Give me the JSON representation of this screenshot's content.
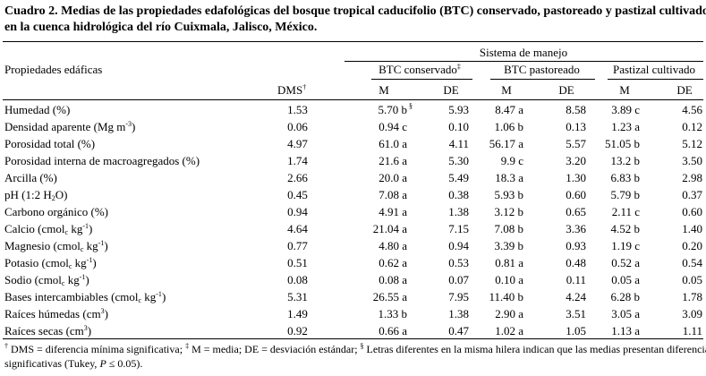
{
  "caption": {
    "line1": "Cuadro 2. Medias de las propiedades edafológicas del bosque tropical caducifolio (BTC) conservado, pastoreado y pastizal cultivado",
    "line2": "en la cuenca hidrológica del río Cuixmala, Jalisco, México."
  },
  "header": {
    "system": "Sistema de manejo",
    "properties": "Propiedades edáficas",
    "dms": "DMS",
    "dms_mark": "†",
    "groups": [
      {
        "label": "BTC conservado",
        "mark": "‡"
      },
      {
        "label": "BTC pastoreado",
        "mark": ""
      },
      {
        "label": "Pastizal cultivado",
        "mark": ""
      }
    ],
    "m": "M",
    "de": "DE"
  },
  "rows": [
    {
      "prop": [
        "Humedad (%)"
      ],
      "dms": "1.53",
      "vals": [
        [
          "5.70 b",
          "§"
        ],
        [
          "5.93",
          ""
        ],
        [
          "8.47 a",
          ""
        ],
        [
          "8.58",
          ""
        ],
        [
          "3.89 c",
          ""
        ],
        [
          "4.56",
          ""
        ]
      ]
    },
    {
      "prop": [
        "Densidad aparente (Mg m",
        "-3",
        ")"
      ],
      "dms": "0.06",
      "vals": [
        [
          "0.94 c",
          ""
        ],
        [
          "0.10",
          ""
        ],
        [
          "1.06 b",
          ""
        ],
        [
          "0.13",
          ""
        ],
        [
          "1.23 a",
          ""
        ],
        [
          "0.12",
          ""
        ]
      ]
    },
    {
      "prop": [
        "Porosidad total (%)"
      ],
      "dms": "4.97",
      "vals": [
        [
          "61.0 a",
          ""
        ],
        [
          "4.11",
          ""
        ],
        [
          "56.17 a",
          ""
        ],
        [
          "5.57",
          ""
        ],
        [
          "51.05 b",
          ""
        ],
        [
          "5.12",
          ""
        ]
      ]
    },
    {
      "prop": [
        "Porosidad interna de macroagregados (%)"
      ],
      "dms": "1.74",
      "vals": [
        [
          "21.6 a",
          ""
        ],
        [
          "5.30",
          ""
        ],
        [
          "9.9 c",
          ""
        ],
        [
          "3.20",
          ""
        ],
        [
          "13.2 b",
          ""
        ],
        [
          "3.50",
          ""
        ]
      ]
    },
    {
      "prop": [
        "Arcilla (%)"
      ],
      "dms": "2.66",
      "vals": [
        [
          "20.0 a",
          ""
        ],
        [
          "5.49",
          ""
        ],
        [
          "18.3 a",
          ""
        ],
        [
          "1.30",
          ""
        ],
        [
          "6.83 b",
          ""
        ],
        [
          "2.98",
          ""
        ]
      ]
    },
    {
      "prop": [
        "pH (1:2 H",
        "2",
        "O)"
      ],
      "subtype": "sub",
      "dms": "0.45",
      "vals": [
        [
          "7.08 a",
          ""
        ],
        [
          "0.38",
          ""
        ],
        [
          "5.93 b",
          ""
        ],
        [
          "0.60",
          ""
        ],
        [
          "5.79 b",
          ""
        ],
        [
          "0.37",
          ""
        ]
      ]
    },
    {
      "prop": [
        "Carbono orgánico (%)"
      ],
      "dms": "0.94",
      "vals": [
        [
          "4.91 a",
          ""
        ],
        [
          "1.38",
          ""
        ],
        [
          "3.12 b",
          ""
        ],
        [
          "0.65",
          ""
        ],
        [
          "2.11 c",
          ""
        ],
        [
          "0.60",
          ""
        ]
      ]
    },
    {
      "prop": [
        "Calcio (cmol",
        "c",
        " kg",
        "-1",
        ")"
      ],
      "subtype": "ion",
      "dms": "4.64",
      "vals": [
        [
          "21.04 a",
          ""
        ],
        [
          "7.15",
          ""
        ],
        [
          "7.08 b",
          ""
        ],
        [
          "3.36",
          ""
        ],
        [
          "4.52 b",
          ""
        ],
        [
          "1.40",
          ""
        ]
      ]
    },
    {
      "prop": [
        "Magnesio (cmol",
        "c",
        " kg",
        "-1",
        ")"
      ],
      "subtype": "ion",
      "dms": "0.77",
      "vals": [
        [
          "4.80 a",
          ""
        ],
        [
          "0.94",
          ""
        ],
        [
          "3.39 b",
          ""
        ],
        [
          "0.93",
          ""
        ],
        [
          "1.19 c",
          ""
        ],
        [
          "0.20",
          ""
        ]
      ]
    },
    {
      "prop": [
        "Potasio (cmol",
        "c",
        " kg",
        "-1",
        ")"
      ],
      "subtype": "ion",
      "dms": "0.51",
      "vals": [
        [
          "0.62 a",
          ""
        ],
        [
          "0.53",
          ""
        ],
        [
          "0.81 a",
          ""
        ],
        [
          "0.48",
          ""
        ],
        [
          "0.52 a",
          ""
        ],
        [
          "0.54",
          ""
        ]
      ]
    },
    {
      "prop": [
        "Sodio (cmol",
        "c",
        " kg",
        "-1",
        ")"
      ],
      "subtype": "ion",
      "dms": "0.08",
      "vals": [
        [
          "0.08 a",
          ""
        ],
        [
          "0.07",
          ""
        ],
        [
          "0.10 a",
          ""
        ],
        [
          "0.11",
          ""
        ],
        [
          "0.05 a",
          ""
        ],
        [
          "0.05",
          ""
        ]
      ]
    },
    {
      "prop": [
        "Bases intercambiables (cmol",
        "c",
        " kg",
        "-1",
        ")"
      ],
      "subtype": "ion",
      "dms": "5.31",
      "vals": [
        [
          "26.55 a",
          ""
        ],
        [
          "7.95",
          ""
        ],
        [
          "11.40 b",
          ""
        ],
        [
          "4.24",
          ""
        ],
        [
          "6.28 b",
          ""
        ],
        [
          "1.78",
          ""
        ]
      ]
    },
    {
      "prop": [
        "Raíces húmedas (cm",
        "3",
        ")"
      ],
      "dms": "1.49",
      "vals": [
        [
          "1.33 b",
          ""
        ],
        [
          "1.38",
          ""
        ],
        [
          "2.90 a",
          ""
        ],
        [
          "3.51",
          ""
        ],
        [
          "3.05 a",
          ""
        ],
        [
          "3.09",
          ""
        ]
      ]
    },
    {
      "prop": [
        "Raíces secas (cm",
        "3",
        ")"
      ],
      "dms": "0.92",
      "vals": [
        [
          "0.66 a",
          ""
        ],
        [
          "0.47",
          ""
        ],
        [
          "1.02 a",
          ""
        ],
        [
          "1.05",
          ""
        ],
        [
          "1.13 a",
          ""
        ],
        [
          "1.11",
          ""
        ]
      ]
    }
  ],
  "footnote": {
    "m1": "†",
    "t1": " DMS = diferencia mínima significativa; ",
    "m2": "‡",
    "t2": " M = media; DE = desviación estándar; ",
    "m3": "§",
    "t3": " Letras diferentes en la misma hilera indican que las medias presentan diferencias",
    "t4": "significativas (Tukey, ",
    "p": "P",
    "t5": " ≤ 0.05)."
  }
}
